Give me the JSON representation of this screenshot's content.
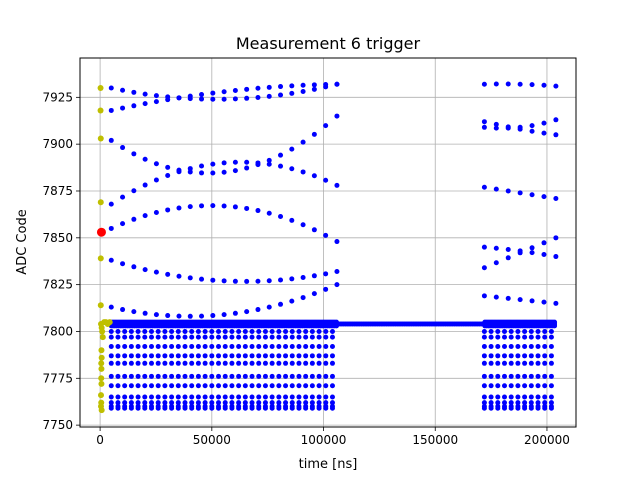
{
  "chart_data": {
    "type": "scatter",
    "title": "Measurement 6 trigger",
    "xlabel": "time [ns]",
    "ylabel": "ADC Code",
    "xlim": [
      -9000,
      213000
    ],
    "ylim": [
      7749,
      7946
    ],
    "xticks": [
      0,
      50000,
      100000,
      150000,
      200000
    ],
    "xtick_labels": [
      "0",
      "50000",
      "100000",
      "150000",
      "200000"
    ],
    "yticks": [
      7750,
      7775,
      7800,
      7825,
      7850,
      7875,
      7900,
      7925
    ],
    "ytick_labels": [
      "7750",
      "7775",
      "7800",
      "7825",
      "7850",
      "7875",
      "7900",
      "7925"
    ],
    "grid": true,
    "colors": {
      "main": "#0000ff",
      "pre": "#bfbf00",
      "trigger": "#ff0000"
    },
    "trigger_point": {
      "x": 600,
      "y": 7853
    },
    "pre_trigger_points": [
      {
        "x": 200,
        "y": 7930
      },
      {
        "x": 200,
        "y": 7918
      },
      {
        "x": 300,
        "y": 7903
      },
      {
        "x": 300,
        "y": 7869
      },
      {
        "x": 300,
        "y": 7839
      },
      {
        "x": 300,
        "y": 7814
      },
      {
        "x": 400,
        "y": 7804
      },
      {
        "x": 700,
        "y": 7802
      },
      {
        "x": 900,
        "y": 7800
      },
      {
        "x": 1200,
        "y": 7797
      },
      {
        "x": 1800,
        "y": 7805
      },
      {
        "x": 2600,
        "y": 7805
      },
      {
        "x": 3400,
        "y": 7804
      },
      {
        "x": 4300,
        "y": 7805
      },
      {
        "x": 600,
        "y": 7790
      },
      {
        "x": 700,
        "y": 7786
      },
      {
        "x": 500,
        "y": 7783
      },
      {
        "x": 600,
        "y": 7780
      },
      {
        "x": 500,
        "y": 7775
      },
      {
        "x": 600,
        "y": 7772
      },
      {
        "x": 400,
        "y": 7766
      },
      {
        "x": 500,
        "y": 7762
      },
      {
        "x": 400,
        "y": 7760
      },
      {
        "x": 700,
        "y": 7758
      }
    ],
    "segments": [
      {
        "x_start": 5000,
        "x_end": 106000
      },
      {
        "x_start": 172000,
        "x_end": 204000
      }
    ],
    "bursts": [
      {
        "x_start": 5000,
        "x_end": 106000,
        "y_start": 7930,
        "y_end": 7932,
        "y_mid": 7924,
        "points": 21
      },
      {
        "x_start": 5000,
        "x_end": 106000,
        "y_start": 7918,
        "y_end": 7932,
        "y_mid": 7928,
        "points": 21
      },
      {
        "x_start": 5000,
        "x_end": 106000,
        "y_start": 7902,
        "y_end": 7915,
        "y_mid": 7885,
        "points": 21
      },
      {
        "x_start": 5000,
        "x_end": 106000,
        "y_start": 7868,
        "y_end": 7878,
        "y_mid": 7890,
        "points": 21
      },
      {
        "x_start": 5000,
        "x_end": 106000,
        "y_start": 7855,
        "y_end": 7848,
        "y_mid": 7867,
        "points": 21
      },
      {
        "x_start": 5000,
        "x_end": 106000,
        "y_start": 7838,
        "y_end": 7832,
        "y_mid": 7827,
        "points": 21
      },
      {
        "x_start": 5000,
        "x_end": 106000,
        "y_start": 7813,
        "y_end": 7825,
        "y_mid": 7809,
        "points": 21
      },
      {
        "x_start": 172000,
        "x_end": 204000,
        "y_start": 7932,
        "y_end": 7931,
        "y_mid": 7932,
        "points": 7
      },
      {
        "x_start": 172000,
        "x_end": 204000,
        "y_start": 7912,
        "y_end": 7905,
        "y_mid": 7908,
        "points": 7
      },
      {
        "x_start": 172000,
        "x_end": 204000,
        "y_start": 7909,
        "y_end": 7913,
        "y_mid": 7909,
        "points": 7
      },
      {
        "x_start": 172000,
        "x_end": 204000,
        "y_start": 7877,
        "y_end": 7871,
        "y_mid": 7874,
        "points": 7
      },
      {
        "x_start": 172000,
        "x_end": 204000,
        "y_start": 7845,
        "y_end": 7840,
        "y_mid": 7843,
        "points": 7
      },
      {
        "x_start": 172000,
        "x_end": 204000,
        "y_start": 7834,
        "y_end": 7850,
        "y_mid": 7842,
        "points": 7
      },
      {
        "x_start": 172000,
        "x_end": 204000,
        "y_start": 7819,
        "y_end": 7815,
        "y_mid": 7817,
        "points": 7
      }
    ],
    "baseline": {
      "x_start": 5000,
      "x_end": 204000,
      "y_values": [
        7803,
        7804,
        7805
      ]
    },
    "lower_rows": [
      7800,
      7797,
      7792,
      7787,
      7783,
      7776,
      7771,
      7765,
      7762,
      7760,
      7759
    ]
  }
}
